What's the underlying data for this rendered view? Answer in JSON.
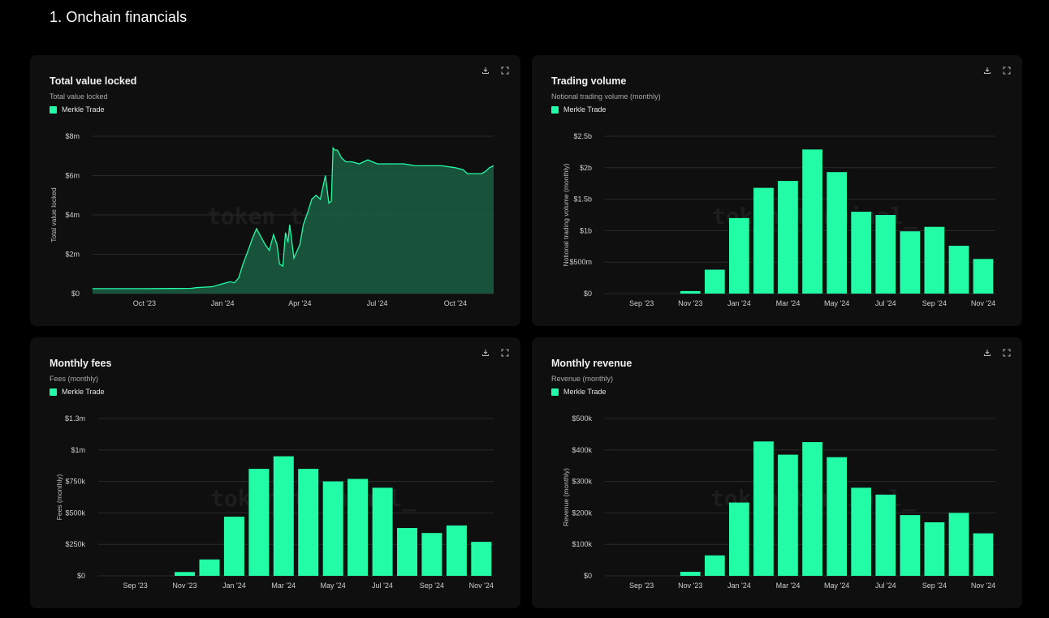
{
  "page": {
    "title": "1. Onchain financials"
  },
  "theme": {
    "accent": "#22fca6",
    "area_fill": "#1a5a3f",
    "card_bg": "#0f0f0f",
    "gridline": "#2a2a2a"
  },
  "icons": {
    "download": "download-icon",
    "expand": "expand-icon"
  },
  "cards": [
    {
      "title": "Total value locked",
      "subtitle": "Total value locked",
      "legend": "Merkle Trade",
      "watermark": "token terminal_"
    },
    {
      "title": "Trading volume",
      "subtitle": "Notional trading volume (monthly)",
      "legend": "Merkle Trade",
      "watermark": "token terminal_"
    },
    {
      "title": "Monthly fees",
      "subtitle": "Fees (monthly)",
      "legend": "Merkle Trade",
      "watermark": "token terminal_"
    },
    {
      "title": "Monthly revenue",
      "subtitle": "Revenue (monthly)",
      "legend": "Merkle Trade",
      "watermark": "token terminal_"
    }
  ],
  "chart_data": [
    {
      "type": "area",
      "title": "Total value locked",
      "ylabel": "Total value locked",
      "ylim": [
        0,
        8
      ],
      "y_ticks": [
        0,
        2,
        4,
        6,
        8
      ],
      "y_tick_labels": [
        "$0",
        "$2m",
        "$4m",
        "$6m",
        "$8m"
      ],
      "xlim": [
        "2023-08-01",
        "2024-11-15"
      ],
      "x_ticks": [
        "2023-10-01",
        "2024-01-01",
        "2024-04-01",
        "2024-07-01",
        "2024-10-01"
      ],
      "x_tick_labels": [
        "Oct '23",
        "Jan '24",
        "Apr '24",
        "Jul '24",
        "Oct '24"
      ],
      "grid": true,
      "series": [
        {
          "name": "Merkle Trade",
          "x": [
            "2023-08-01",
            "2023-09-01",
            "2023-10-01",
            "2023-11-01",
            "2023-11-25",
            "2023-12-01",
            "2023-12-20",
            "2024-01-01",
            "2024-01-10",
            "2024-01-15",
            "2024-01-20",
            "2024-01-25",
            "2024-02-01",
            "2024-02-05",
            "2024-02-10",
            "2024-02-15",
            "2024-02-20",
            "2024-02-25",
            "2024-03-01",
            "2024-03-05",
            "2024-03-08",
            "2024-03-12",
            "2024-03-15",
            "2024-03-18",
            "2024-03-20",
            "2024-03-25",
            "2024-04-01",
            "2024-04-05",
            "2024-04-10",
            "2024-04-15",
            "2024-04-20",
            "2024-04-25",
            "2024-05-01",
            "2024-05-05",
            "2024-05-08",
            "2024-05-10",
            "2024-05-12",
            "2024-05-15",
            "2024-05-20",
            "2024-05-25",
            "2024-06-01",
            "2024-06-10",
            "2024-06-20",
            "2024-07-01",
            "2024-07-15",
            "2024-08-01",
            "2024-08-15",
            "2024-09-01",
            "2024-09-15",
            "2024-10-01",
            "2024-10-10",
            "2024-10-15",
            "2024-10-20",
            "2024-11-01",
            "2024-11-05",
            "2024-11-10",
            "2024-11-15"
          ],
          "y": [
            0.25,
            0.25,
            0.25,
            0.26,
            0.27,
            0.3,
            0.35,
            0.5,
            0.6,
            0.55,
            0.8,
            1.5,
            2.3,
            2.8,
            3.3,
            2.9,
            2.5,
            2.2,
            3.0,
            2.5,
            1.5,
            1.4,
            3.1,
            2.6,
            3.5,
            1.8,
            2.5,
            3.5,
            4.1,
            4.8,
            5.0,
            4.8,
            6.0,
            4.6,
            4.7,
            7.4,
            7.3,
            7.3,
            6.9,
            6.7,
            6.7,
            6.6,
            6.8,
            6.6,
            6.6,
            6.6,
            6.5,
            6.5,
            6.5,
            6.4,
            6.3,
            6.1,
            6.1,
            6.1,
            6.2,
            6.4,
            6.5
          ]
        }
      ]
    },
    {
      "type": "bar",
      "title": "Trading volume",
      "ylabel": "Notional trading volume (monthly)",
      "ylim": [
        0,
        2.5
      ],
      "y_ticks": [
        0,
        0.5,
        1,
        1.5,
        2,
        2.5
      ],
      "y_tick_labels": [
        "$0",
        "$500m",
        "$1b",
        "$1.5b",
        "$2b",
        "$2.5b"
      ],
      "x_tick_labels": [
        "Sep '23",
        "Nov '23",
        "Jan '24",
        "Mar '24",
        "May '24",
        "Jul '24",
        "Sep '24",
        "Nov '24"
      ],
      "categories": [
        "Aug '23",
        "Sep '23",
        "Oct '23",
        "Nov '23",
        "Dec '23",
        "Jan '24",
        "Feb '24",
        "Mar '24",
        "Apr '24",
        "May '24",
        "Jun '24",
        "Jul '24",
        "Aug '24",
        "Sep '24",
        "Oct '24",
        "Nov '24"
      ],
      "grid": true,
      "series": [
        {
          "name": "Merkle Trade",
          "values": [
            0,
            0,
            0,
            0.04,
            0.38,
            1.2,
            1.68,
            1.79,
            2.29,
            1.93,
            1.3,
            1.25,
            0.99,
            1.06,
            0.76,
            0.55
          ]
        }
      ]
    },
    {
      "type": "bar",
      "title": "Monthly fees",
      "ylabel": "Fees (monthly)",
      "ylim": [
        0,
        1.25
      ],
      "y_ticks": [
        0,
        0.25,
        0.5,
        0.75,
        1,
        1.25
      ],
      "y_tick_labels": [
        "$0",
        "$250k",
        "$500k",
        "$750k",
        "$1m",
        "$1.3m"
      ],
      "x_tick_labels": [
        "Sep '23",
        "Nov '23",
        "Jan '24",
        "Mar '24",
        "May '24",
        "Jul '24",
        "Sep '24",
        "Nov '24"
      ],
      "categories": [
        "Aug '23",
        "Sep '23",
        "Oct '23",
        "Nov '23",
        "Dec '23",
        "Jan '24",
        "Feb '24",
        "Mar '24",
        "Apr '24",
        "May '24",
        "Jun '24",
        "Jul '24",
        "Aug '24",
        "Sep '24",
        "Oct '24",
        "Nov '24"
      ],
      "grid": true,
      "series": [
        {
          "name": "Merkle Trade",
          "values": [
            0,
            0,
            0,
            0.03,
            0.13,
            0.47,
            0.85,
            0.95,
            0.85,
            0.75,
            0.77,
            0.7,
            0.38,
            0.34,
            0.4,
            0.27
          ]
        }
      ]
    },
    {
      "type": "bar",
      "title": "Monthly revenue",
      "ylabel": "Revenue (monthly)",
      "ylim": [
        0,
        500
      ],
      "y_ticks": [
        0,
        100,
        200,
        300,
        400,
        500
      ],
      "y_tick_labels": [
        "$0",
        "$100k",
        "$200k",
        "$300k",
        "$400k",
        "$500k"
      ],
      "x_tick_labels": [
        "Sep '23",
        "Nov '23",
        "Jan '24",
        "Mar '24",
        "May '24",
        "Jul '24",
        "Sep '24",
        "Nov '24"
      ],
      "categories": [
        "Aug '23",
        "Sep '23",
        "Oct '23",
        "Nov '23",
        "Dec '23",
        "Jan '24",
        "Feb '24",
        "Mar '24",
        "Apr '24",
        "May '24",
        "Jun '24",
        "Jul '24",
        "Aug '24",
        "Sep '24",
        "Oct '24",
        "Nov '24"
      ],
      "grid": true,
      "series": [
        {
          "name": "Merkle Trade",
          "values": [
            0,
            0,
            0,
            13,
            65,
            233,
            427,
            385,
            425,
            377,
            280,
            258,
            193,
            170,
            200,
            135
          ]
        }
      ]
    }
  ]
}
